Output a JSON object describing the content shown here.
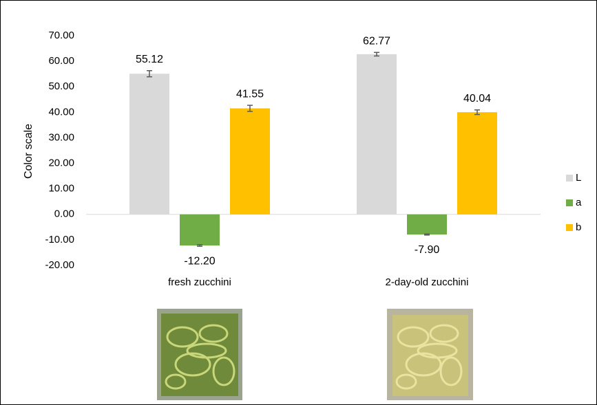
{
  "chart_data": {
    "type": "bar",
    "y_label": "Color scale",
    "categories": [
      "fresh zucchini",
      "2-day-old zucchini"
    ],
    "series": [
      {
        "name": "L",
        "color": "#d9d9d9",
        "values": [
          55.12,
          62.77
        ],
        "errors": [
          1.2,
          0.7
        ],
        "value_labels": [
          "55.12",
          "62.77"
        ]
      },
      {
        "name": "a",
        "color": "#70ad47",
        "values": [
          -12.2,
          -7.9
        ],
        "errors": [
          0.3,
          0.2
        ],
        "value_labels": [
          "-12.20",
          "-7.90"
        ]
      },
      {
        "name": "b",
        "color": "#ffc000",
        "values": [
          41.55,
          40.04
        ],
        "errors": [
          1.2,
          0.9
        ],
        "value_labels": [
          "41.55",
          "40.04"
        ]
      }
    ],
    "ylim": [
      -20,
      70
    ],
    "yticks": [
      {
        "value": -20,
        "label": "-20.00"
      },
      {
        "value": -10,
        "label": "-10.00"
      },
      {
        "value": 0,
        "label": "0.00"
      },
      {
        "value": 10,
        "label": "10.00"
      },
      {
        "value": 20,
        "label": "20.00"
      },
      {
        "value": 30,
        "label": "30.00"
      },
      {
        "value": 40,
        "label": "40.00"
      },
      {
        "value": 50,
        "label": "50.00"
      },
      {
        "value": 60,
        "label": "60.00"
      },
      {
        "value": 70,
        "label": "70.00"
      }
    ],
    "legend": "right"
  }
}
